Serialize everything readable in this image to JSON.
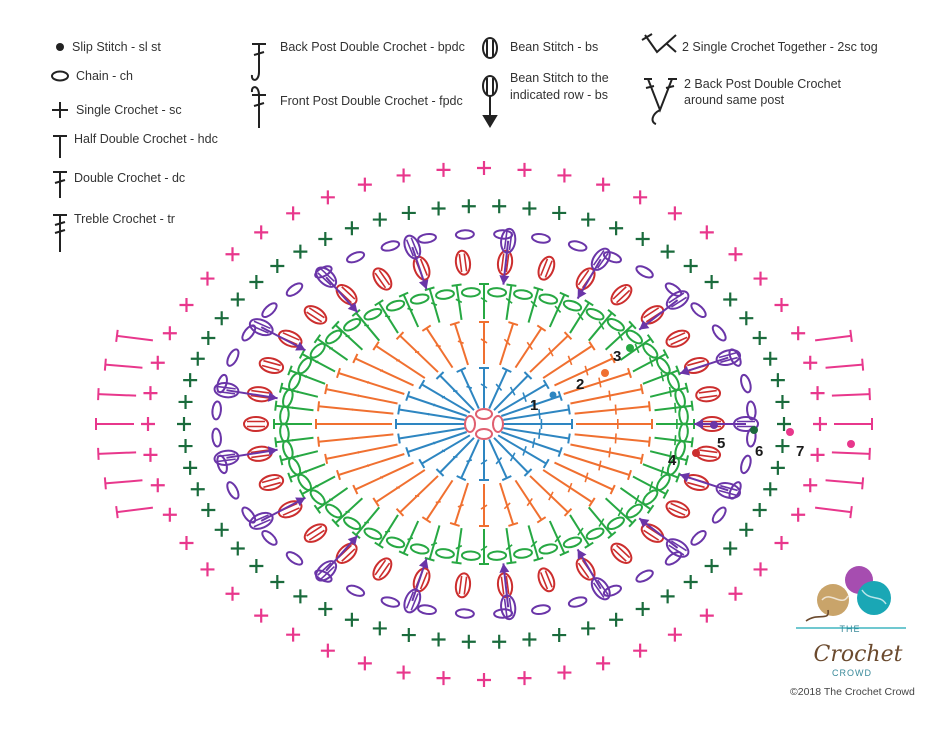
{
  "legend": {
    "slip_stitch": "Slip Stitch - sl st",
    "chain": "Chain - ch",
    "single_crochet": "Single Crochet - sc",
    "half_double_crochet": "Half Double Crochet - hdc",
    "double_crochet": "Double Crochet - dc",
    "treble_crochet": "Treble Crochet - tr",
    "back_post_double_crochet": "Back Post Double Crochet - bpdc",
    "front_post_double_crochet": "Front Post Double Crochet - fpdc",
    "bean_stitch": "Bean Stitch - bs",
    "bean_stitch_indicated_row_line1": "Bean Stitch to the",
    "bean_stitch_indicated_row_line2": "indicated row - bs",
    "sc2tog": "2 Single Crochet Together - 2sc tog",
    "bpdc_same_post_line1": "2 Back Post Double Crochet",
    "bpdc_same_post_line2": "around same post"
  },
  "row_labels": [
    "1",
    "2",
    "3",
    "4",
    "5",
    "6",
    "7"
  ],
  "colors": {
    "row1": "#2e86c1",
    "row2": "#f07030",
    "row3": "#27a843",
    "row4": "#cc2e2e",
    "row5": "#6a35a8",
    "row6": "#1a6b3c",
    "row7": "#e8378c"
  },
  "logo": {
    "brand_top": "THE",
    "brand_main": "Crochet",
    "brand_bottom": "CROWD"
  },
  "copyright": "©2018 The Crochet Crowd"
}
